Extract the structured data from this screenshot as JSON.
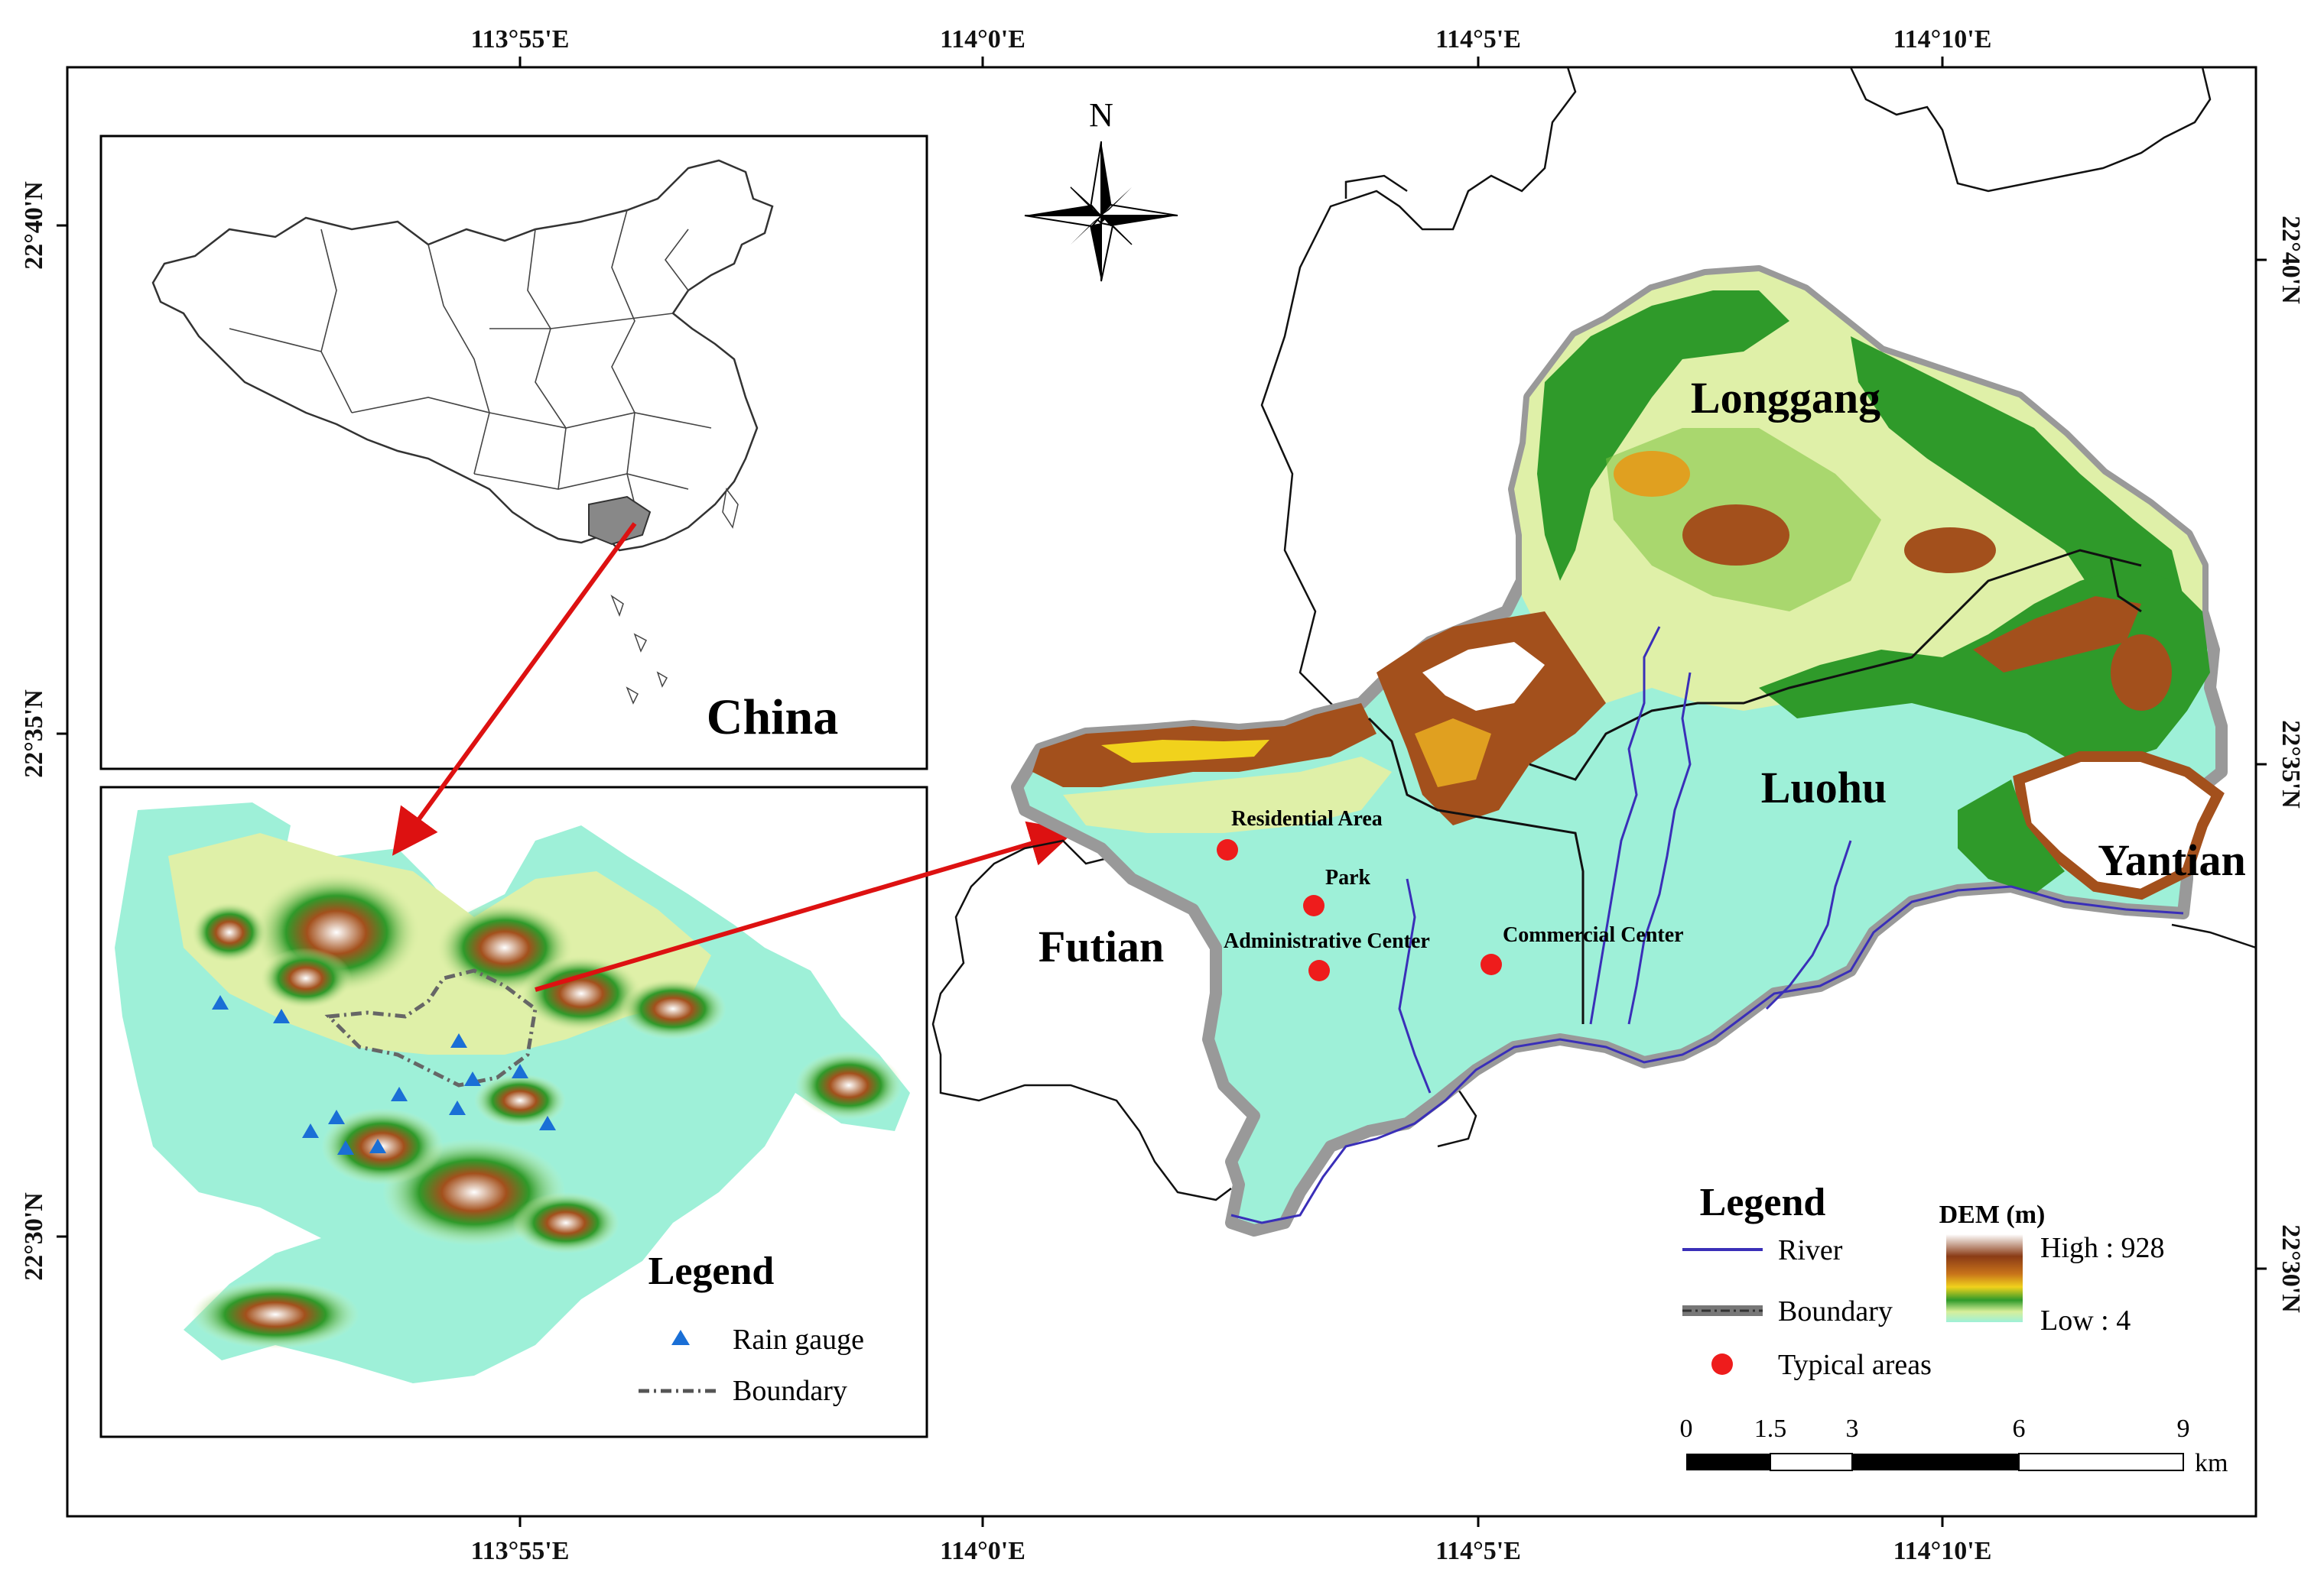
{
  "coordinates": {
    "top_ticks": [
      "113°55'E",
      "114°0'E",
      "114°5'E",
      "114°10'E"
    ],
    "bottom_ticks": [
      "113°55'E",
      "114°0'E",
      "114°5'E",
      "114°10'E"
    ],
    "left_ticks": [
      "22°40'N",
      "22°35'N",
      "22°30'N"
    ],
    "right_ticks": [
      "22°40'N",
      "22°35'N",
      "22°30'N"
    ]
  },
  "north_arrow": {
    "label": "N"
  },
  "inset_china": {
    "label": "China"
  },
  "inset_region": {
    "legend_title": "Legend",
    "legend_items": [
      {
        "label": "Rain gauge",
        "symbol": "triangle",
        "color": "#1a6fd6"
      },
      {
        "label": "Boundary",
        "symbol": "dashed-line",
        "color": "#555555"
      }
    ]
  },
  "main_map": {
    "districts": [
      "Longgang",
      "Luohu",
      "Futian",
      "Yantian"
    ],
    "typical_areas": [
      "Residential Area",
      "Park",
      "Administrative Center",
      "Commercial Center"
    ]
  },
  "main_legend": {
    "title": "Legend",
    "items": [
      {
        "label": "River",
        "symbol": "line",
        "color": "#3a2fb8"
      },
      {
        "label": "Boundary",
        "symbol": "dash-dot-line",
        "color": "#555555"
      },
      {
        "label": "Typical areas",
        "symbol": "circle",
        "color": "#ee1c1c"
      }
    ],
    "dem": {
      "title": "DEM (m)",
      "high": "High : 928",
      "low": "Low : 4"
    }
  },
  "scale_bar": {
    "labels": [
      "0",
      "1.5",
      "3",
      "6",
      "9"
    ],
    "unit": "km"
  },
  "colors": {
    "low": "#9ef0d8",
    "mid_low": "#dff0a8",
    "mid": "#2f9a2a",
    "high": "#a3501c",
    "peak": "#ffffff",
    "arrow": "#dd1111",
    "typical": "#ee1c1c",
    "river": "#3a2fb8"
  }
}
